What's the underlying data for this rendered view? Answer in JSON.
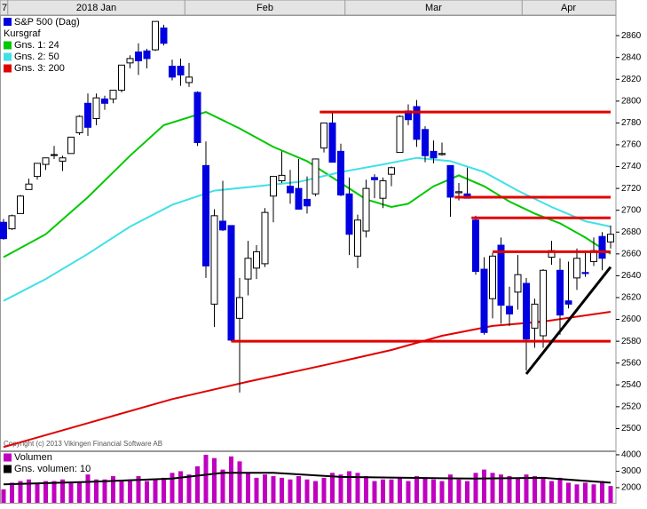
{
  "chart_data": {
    "type": "candlestick",
    "corner_label": "7",
    "title": "S&P 500 (Dag)",
    "subtitle": "Kursgraf",
    "copyright": "Copyright (c) 2013 Vikingen Financial Software AB",
    "color_up": "#ffffff",
    "color_down": "#0000e0",
    "months": [
      {
        "label": "2018 Jan",
        "start": 1
      },
      {
        "label": "Feb",
        "start": 22
      },
      {
        "label": "Mar",
        "start": 41
      },
      {
        "label": "Apr",
        "start": 62
      }
    ],
    "open": [
      2689,
      2683,
      2697,
      2719,
      2731,
      2742,
      2751,
      2745,
      2752,
      2771,
      2798,
      2784,
      2802,
      2802,
      2810,
      2835,
      2845,
      2846,
      2847,
      2867,
      2832,
      2832,
      2817,
      2808,
      2741,
      2614,
      2690,
      2686,
      2601,
      2637,
      2647,
      2651,
      2713,
      2727,
      2722,
      2720,
      2710,
      2715,
      2757,
      2780,
      2754,
      2715,
      2658,
      2681,
      2730,
      2711,
      2733,
      2753,
      2791,
      2795,
      2774,
      2754,
      2751,
      2741,
      2716,
      2715,
      2691,
      2646,
      2619,
      2668,
      2612,
      2625,
      2633,
      2592,
      2585,
      2657,
      2645,
      2617,
      2638,
      2643,
      2653,
      2676,
      2671
    ],
    "high": [
      2692,
      2696,
      2714,
      2729,
      2743,
      2748,
      2759,
      2750,
      2767,
      2787,
      2807,
      2807,
      2805,
      2810,
      2833,
      2842,
      2853,
      2848,
      2873,
      2870,
      2838,
      2839,
      2835,
      2809,
      2763,
      2701,
      2727,
      2686,
      2638,
      2672,
      2668,
      2702,
      2731,
      2754,
      2737,
      2747,
      2731,
      2747,
      2780,
      2789,
      2761,
      2730,
      2696,
      2728,
      2733,
      2730,
      2740,
      2787,
      2797,
      2801,
      2777,
      2764,
      2762,
      2741,
      2725,
      2739,
      2695,
      2657,
      2661,
      2675,
      2630,
      2659,
      2638,
      2619,
      2646,
      2672,
      2656,
      2653,
      2665,
      2661,
      2675,
      2680,
      2686
    ],
    "low": [
      2673,
      2682,
      2697,
      2719,
      2728,
      2737,
      2747,
      2736,
      2752,
      2769,
      2768,
      2778,
      2792,
      2798,
      2808,
      2830,
      2824,
      2830,
      2846,
      2851,
      2819,
      2814,
      2813,
      2759,
      2638,
      2593,
      2681,
      2580,
      2533,
      2622,
      2637,
      2648,
      2689,
      2725,
      2706,
      2701,
      2697,
      2713,
      2753,
      2744,
      2713,
      2659,
      2647,
      2675,
      2711,
      2702,
      2722,
      2753,
      2778,
      2758,
      2744,
      2743,
      2750,
      2694,
      2709,
      2711,
      2641,
      2586,
      2601,
      2596,
      2594,
      2609,
      2553,
      2574,
      2574,
      2650,
      2586,
      2610,
      2627,
      2639,
      2649,
      2645,
      2665
    ],
    "close": [
      2674,
      2695,
      2713,
      2724,
      2743,
      2748,
      2751,
      2748,
      2767,
      2786,
      2776,
      2803,
      2798,
      2810,
      2833,
      2839,
      2837,
      2839,
      2873,
      2853,
      2822,
      2824,
      2822,
      2762,
      2649,
      2695,
      2682,
      2581,
      2620,
      2656,
      2662,
      2698,
      2731,
      2732,
      2716,
      2701,
      2704,
      2747,
      2780,
      2744,
      2714,
      2678,
      2691,
      2720,
      2728,
      2727,
      2739,
      2786,
      2783,
      2765,
      2750,
      2748,
      2752,
      2712,
      2717,
      2711,
      2644,
      2588,
      2658,
      2613,
      2605,
      2641,
      2582,
      2614,
      2645,
      2663,
      2604,
      2614,
      2656,
      2642,
      2663,
      2656,
      2678
    ],
    "ylim": [
      2480,
      2878
    ],
    "yticks": [
      2500,
      2520,
      2540,
      2560,
      2580,
      2600,
      2620,
      2640,
      2660,
      2680,
      2700,
      2720,
      2740,
      2760,
      2780,
      2800,
      2820,
      2840,
      2860
    ],
    "series": [
      {
        "name": "Gns. 1: 24",
        "color": "#00c800",
        "x": [
          0,
          5,
          10,
          15,
          19,
          24,
          28,
          32,
          36,
          40,
          43,
          46,
          48,
          51,
          54,
          57,
          60,
          63,
          66,
          69,
          72
        ],
        "values": [
          2657,
          2678,
          2712,
          2750,
          2778,
          2790,
          2775,
          2758,
          2745,
          2725,
          2710,
          2703,
          2706,
          2722,
          2732,
          2722,
          2708,
          2697,
          2688,
          2675,
          2660
        ]
      },
      {
        "name": "Gns. 2: 50",
        "color": "#40e0e8",
        "x": [
          0,
          5,
          10,
          15,
          20,
          25,
          30,
          35,
          40,
          45,
          49,
          53,
          57,
          61,
          65,
          69,
          72
        ],
        "values": [
          2617,
          2637,
          2660,
          2685,
          2705,
          2718,
          2722,
          2726,
          2735,
          2742,
          2748,
          2745,
          2735,
          2718,
          2703,
          2690,
          2685
        ]
      },
      {
        "name": "Gns. 3: 200",
        "color": "#e00000",
        "x": [
          0,
          10,
          20,
          29,
          38,
          46,
          52,
          58,
          64,
          72
        ],
        "values": [
          2483,
          2505,
          2527,
          2543,
          2558,
          2572,
          2585,
          2594,
          2598,
          2607
        ]
      }
    ],
    "lines": [
      {
        "color": "#e00000",
        "x": [
          37.5,
          72
        ],
        "values": [
          2790,
          2790
        ]
      },
      {
        "color": "#e00000",
        "x": [
          53.5,
          72
        ],
        "values": [
          2712,
          2712
        ]
      },
      {
        "color": "#e00000",
        "x": [
          55.5,
          72
        ],
        "values": [
          2693,
          2693
        ]
      },
      {
        "color": "#e00000",
        "x": [
          58,
          72
        ],
        "values": [
          2662,
          2662
        ]
      },
      {
        "color": "#e00000",
        "x": [
          27,
          72
        ],
        "values": [
          2580,
          2580
        ]
      },
      {
        "color": "#000000",
        "x": [
          62,
          72
        ],
        "values": [
          2550,
          2648
        ]
      }
    ],
    "volume": {
      "name": "Volumen",
      "color": "#c000c0",
      "values": [
        1900,
        2300,
        2400,
        2500,
        2300,
        2400,
        2400,
        2500,
        2300,
        2300,
        2800,
        2500,
        2500,
        2700,
        2400,
        2500,
        2700,
        2400,
        2500,
        2600,
        2900,
        3000,
        2800,
        3300,
        4000,
        3800,
        3100,
        3900,
        3600,
        2900,
        2600,
        2800,
        2700,
        2600,
        2500,
        2700,
        2500,
        2400,
        2600,
        2900,
        2800,
        3000,
        2900,
        2700,
        2400,
        2500,
        2500,
        2600,
        2400,
        2700,
        2600,
        2500,
        2400,
        2800,
        2500,
        2400,
        2900,
        3100,
        2900,
        2800,
        2700,
        2600,
        2800,
        2700,
        2600,
        2400,
        2600,
        2300,
        2200,
        2300,
        2200,
        2400,
        2100
      ],
      "average": {
        "name": "Gns. volumen: 10",
        "color": "#000000",
        "x": [
          0,
          10,
          20,
          26,
          32,
          40,
          48,
          56,
          64,
          72
        ],
        "values": [
          2200,
          2350,
          2550,
          2900,
          2900,
          2650,
          2600,
          2550,
          2600,
          2300
        ]
      },
      "ylim": [
        1080,
        4160
      ],
      "yticks": [
        2000,
        3000,
        4000
      ]
    }
  }
}
